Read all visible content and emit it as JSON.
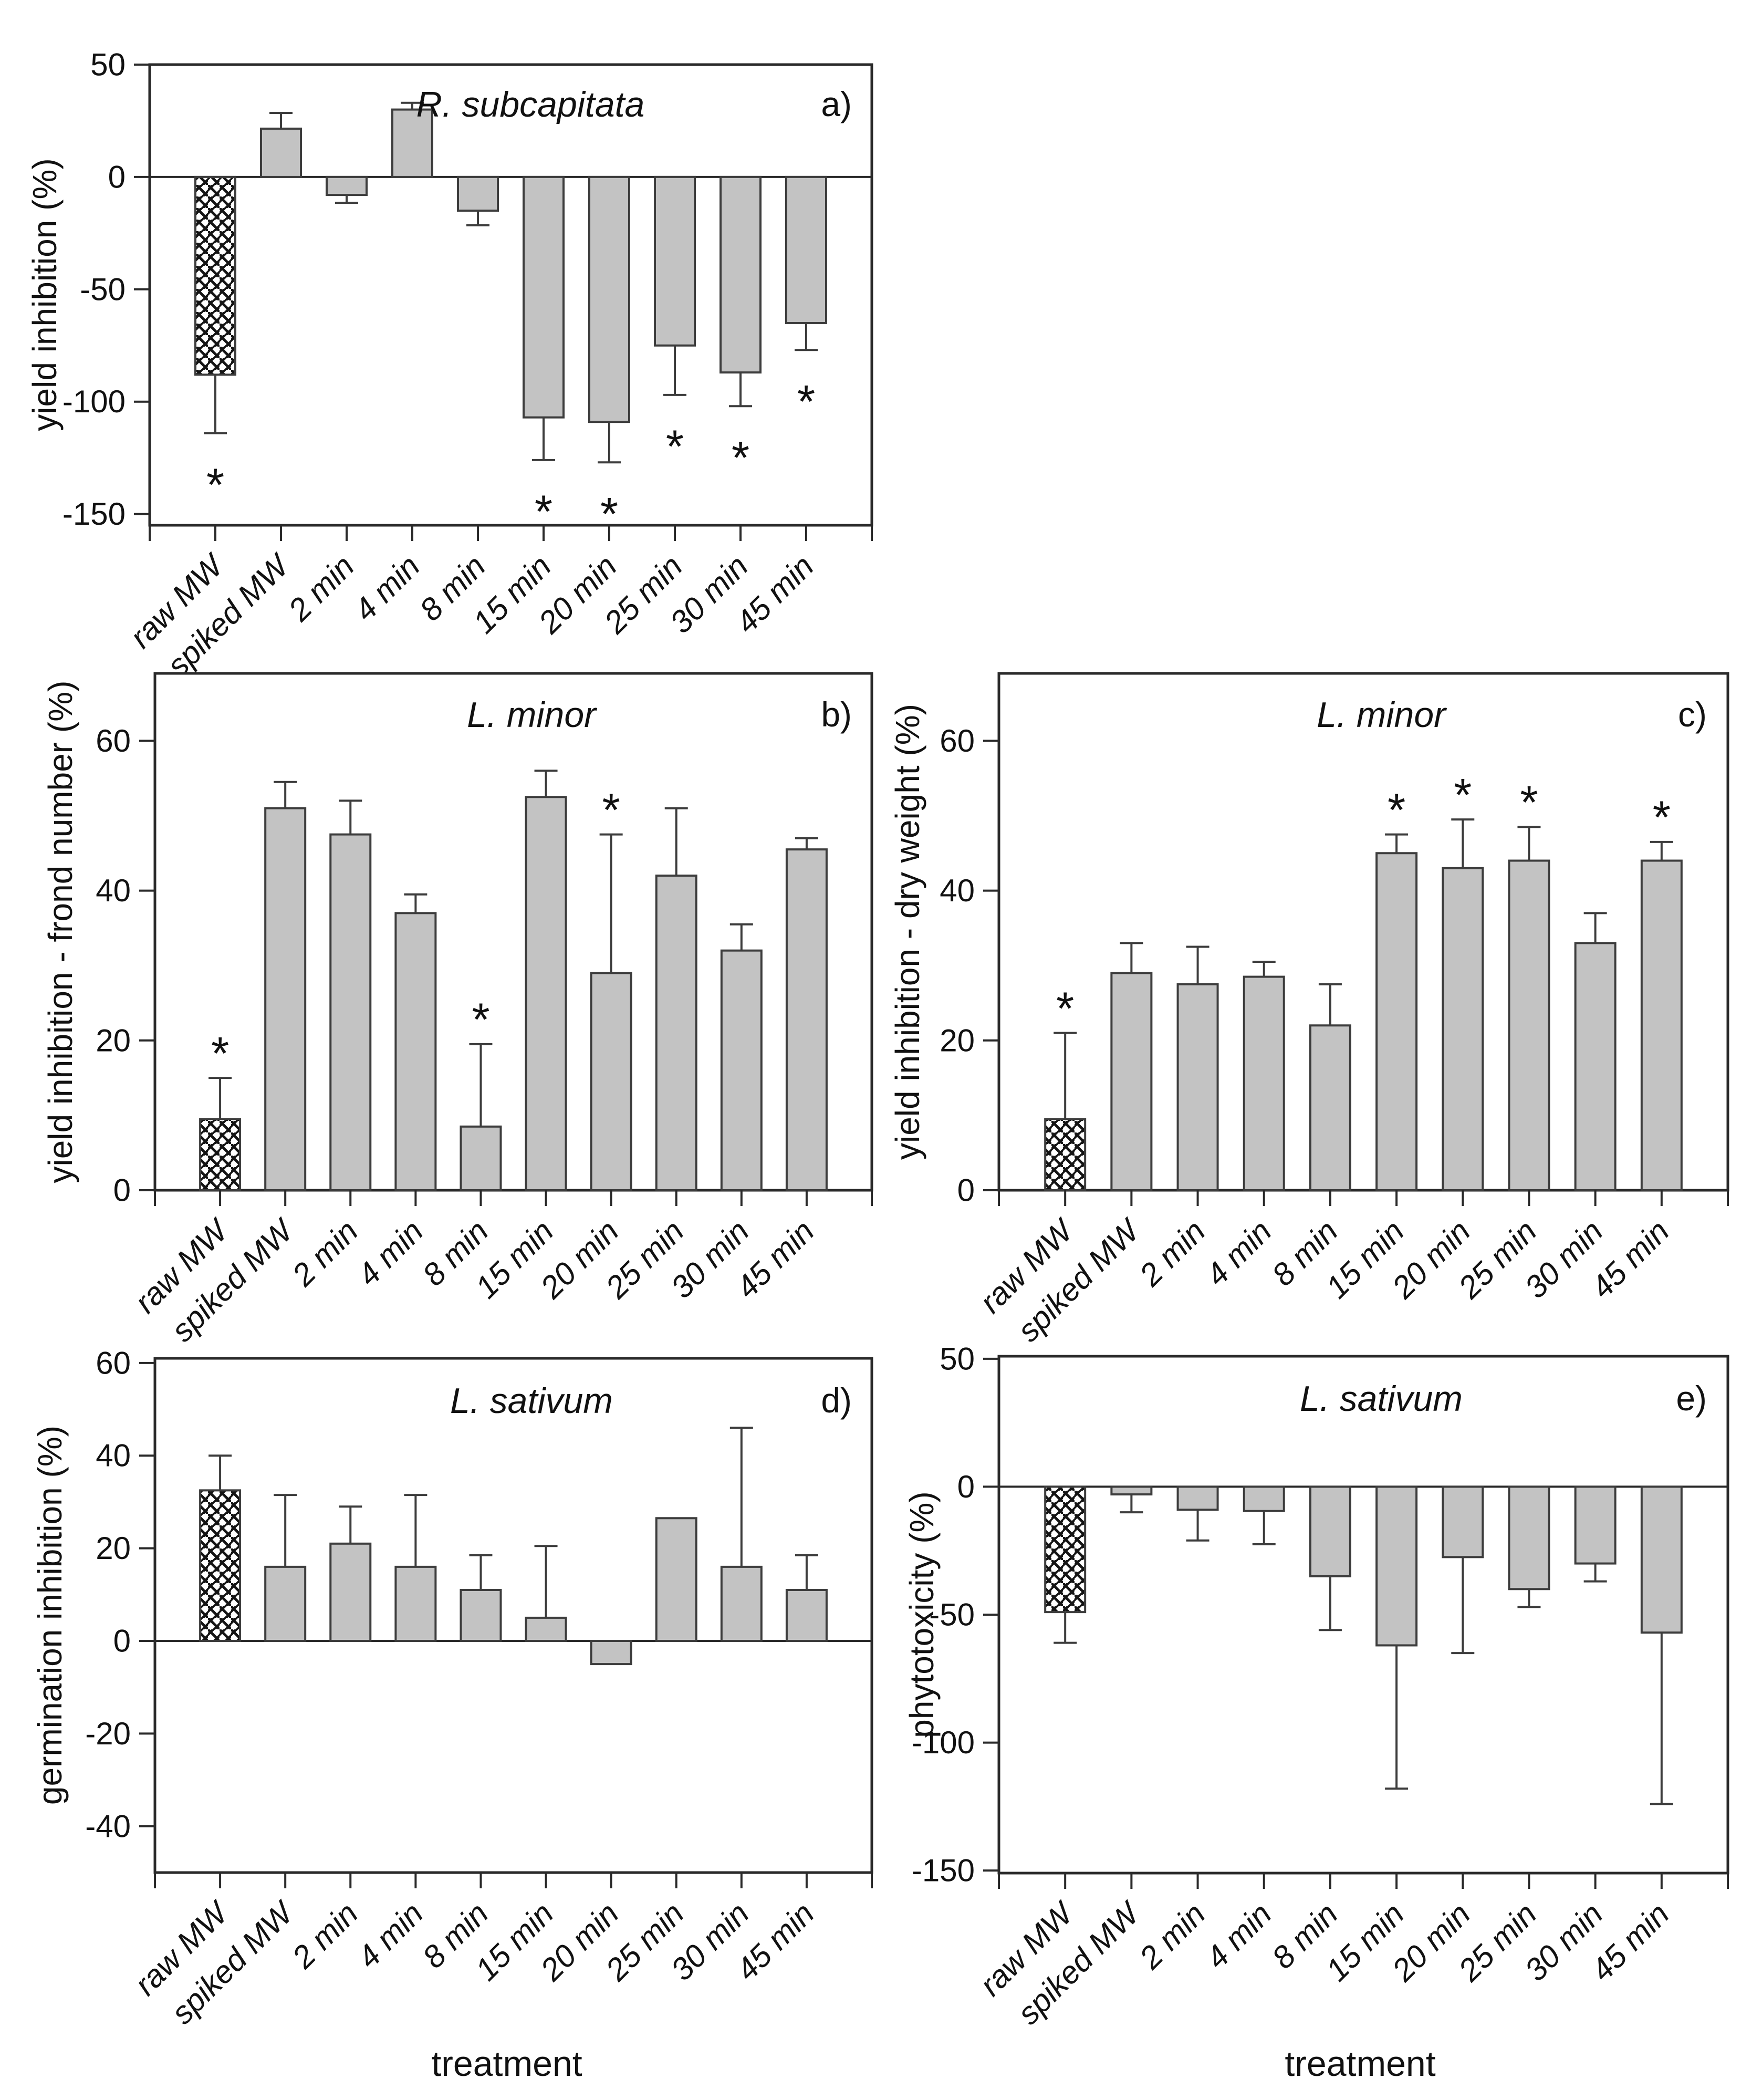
{
  "figure": {
    "x_axis_title": "treatment",
    "significance_symbol": "*",
    "background": "#ffffff",
    "colors": {
      "bar_fill": "#c3c3c3",
      "bar_border": "#3d3d3d",
      "axis": "#2a2a2a",
      "text": "#111111",
      "hatch_line": "#141414"
    },
    "categories": [
      "raw MW",
      "spiked MW",
      "2 min",
      "4 min",
      "8 min",
      "15 min",
      "20 min",
      "25 min",
      "30 min",
      "45 min"
    ]
  },
  "chart_data": [
    {
      "id": "a",
      "type": "bar",
      "panel_label": "a)",
      "title": "R. subcapitata",
      "ylabel": "yield inhibition (%)",
      "xlabel": "",
      "ylim": [
        -155,
        50
      ],
      "yticks": [
        50,
        0,
        -50,
        -100,
        -150
      ],
      "grid": false,
      "legend": null,
      "categories": [
        "raw MW",
        "spiked MW",
        "2 min",
        "4 min",
        "8 min",
        "15 min",
        "20 min",
        "25 min",
        "30 min",
        "45 min"
      ],
      "values": [
        -88,
        21.5,
        -8,
        30,
        -15,
        -107,
        -109,
        -75,
        -87,
        -65
      ],
      "err_to": [
        -114,
        28.5,
        -11.5,
        33,
        -21.5,
        -126,
        -127,
        -97,
        -102,
        -77
      ],
      "hatched_indices": [
        0
      ],
      "sig_indices": [
        0,
        5,
        6,
        7,
        8,
        9
      ],
      "sig_position": "beyond_error",
      "show_xticklabels": true,
      "show_xaxis_title": false
    },
    {
      "id": "b",
      "type": "bar",
      "panel_label": "b)",
      "title": "L. minor",
      "ylabel": "yield inhibition - frond number (%)",
      "xlabel": "",
      "ylim": [
        0,
        69
      ],
      "yticks": [
        0,
        20,
        40,
        60
      ],
      "grid": false,
      "legend": null,
      "categories": [
        "raw MW",
        "spiked MW",
        "2 min",
        "4 min",
        "8 min",
        "15 min",
        "20 min",
        "25 min",
        "30 min",
        "45 min"
      ],
      "values": [
        9.5,
        51,
        47.5,
        37,
        8.5,
        52.5,
        29,
        42,
        32,
        45.5
      ],
      "err_to": [
        15,
        54.5,
        52,
        39.5,
        19.5,
        56,
        47.5,
        51,
        35.5,
        47
      ],
      "hatched_indices": [
        0
      ],
      "sig_indices": [
        0,
        4,
        6
      ],
      "sig_position": "beyond_error",
      "show_xticklabels": true,
      "show_xaxis_title": false
    },
    {
      "id": "c",
      "type": "bar",
      "panel_label": "c)",
      "title": "L. minor",
      "ylabel": "yield inhibition - dry weight (%)",
      "xlabel": "",
      "ylim": [
        0,
        69
      ],
      "yticks": [
        0,
        20,
        40,
        60
      ],
      "grid": false,
      "legend": null,
      "categories": [
        "raw MW",
        "spiked MW",
        "2 min",
        "4 min",
        "8 min",
        "15 min",
        "20 min",
        "25 min",
        "30 min",
        "45 min"
      ],
      "values": [
        9.5,
        29,
        27.5,
        28.5,
        22,
        45,
        43,
        44,
        33,
        44
      ],
      "err_to": [
        21,
        33,
        32.5,
        30.5,
        27.5,
        47.5,
        49.5,
        48.5,
        37,
        46.5
      ],
      "hatched_indices": [
        0
      ],
      "sig_indices": [
        0,
        5,
        6,
        7,
        9
      ],
      "sig_position": "beyond_error",
      "show_xticklabels": true,
      "show_xaxis_title": false
    },
    {
      "id": "d",
      "type": "bar",
      "panel_label": "d)",
      "title": "L. sativum",
      "ylabel": "germination inhibition (%)",
      "xlabel": "treatment",
      "ylim": [
        -50,
        61
      ],
      "yticks": [
        60,
        40,
        20,
        0,
        -20,
        -40
      ],
      "grid": false,
      "legend": null,
      "categories": [
        "raw MW",
        "spiked MW",
        "2 min",
        "4 min",
        "8 min",
        "15 min",
        "20 min",
        "25 min",
        "30 min",
        "45 min"
      ],
      "values": [
        32.5,
        16,
        21,
        16,
        11,
        5,
        -5,
        26.5,
        16,
        11
      ],
      "err_to": [
        40,
        31.5,
        29,
        31.5,
        18.5,
        20.5,
        null,
        null,
        46,
        18.5
      ],
      "hatched_indices": [
        0
      ],
      "sig_indices": [],
      "sig_position": "beyond_error",
      "show_xticklabels": true,
      "show_xaxis_title": true
    },
    {
      "id": "e",
      "type": "bar",
      "panel_label": "e)",
      "title": "L. sativum",
      "ylabel": "phytotoxicity (%)",
      "xlabel": "treatment",
      "ylim": [
        -151,
        51
      ],
      "yticks": [
        50,
        0,
        -50,
        -100,
        -150
      ],
      "grid": false,
      "legend": null,
      "categories": [
        "raw MW",
        "spiked MW",
        "2 min",
        "4 min",
        "8 min",
        "15 min",
        "20 min",
        "25 min",
        "30 min",
        "45 min"
      ],
      "values": [
        -49,
        -3,
        -9,
        -9.5,
        -35,
        -62,
        -27.5,
        -40,
        -30,
        -57
      ],
      "err_to": [
        -61,
        -10,
        -21,
        -22.5,
        -56,
        -118,
        -65,
        -47,
        -37,
        -124
      ],
      "hatched_indices": [
        0
      ],
      "sig_indices": [],
      "sig_position": "beyond_error",
      "show_xticklabels": true,
      "show_xaxis_title": true
    }
  ]
}
